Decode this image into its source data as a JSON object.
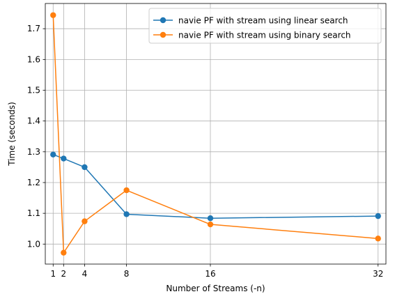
{
  "chart_data": {
    "type": "line",
    "title": "",
    "xlabel": "Number of Streams (-n)",
    "ylabel": "Time (seconds)",
    "x": [
      1,
      2,
      4,
      8,
      16,
      32
    ],
    "xticks": [
      "1",
      "2",
      "4",
      "8",
      "16",
      "32"
    ],
    "yticks": [
      "1.0",
      "1.1",
      "1.2",
      "1.3",
      "1.4",
      "1.5",
      "1.6",
      "1.7"
    ],
    "xlim": [
      0.25,
      32.75
    ],
    "ylim": [
      0.935,
      1.782
    ],
    "grid": true,
    "legend_position": "top-right",
    "series": [
      {
        "name": "navie PF with stream using linear search",
        "color": "#1f77b4",
        "values": [
          1.291,
          1.278,
          1.25,
          1.097,
          1.084,
          1.091
        ]
      },
      {
        "name": "navie PF with stream using binary search",
        "color": "#ff7f0e",
        "values": [
          1.744,
          0.972,
          1.074,
          1.175,
          1.064,
          1.018
        ]
      }
    ]
  }
}
